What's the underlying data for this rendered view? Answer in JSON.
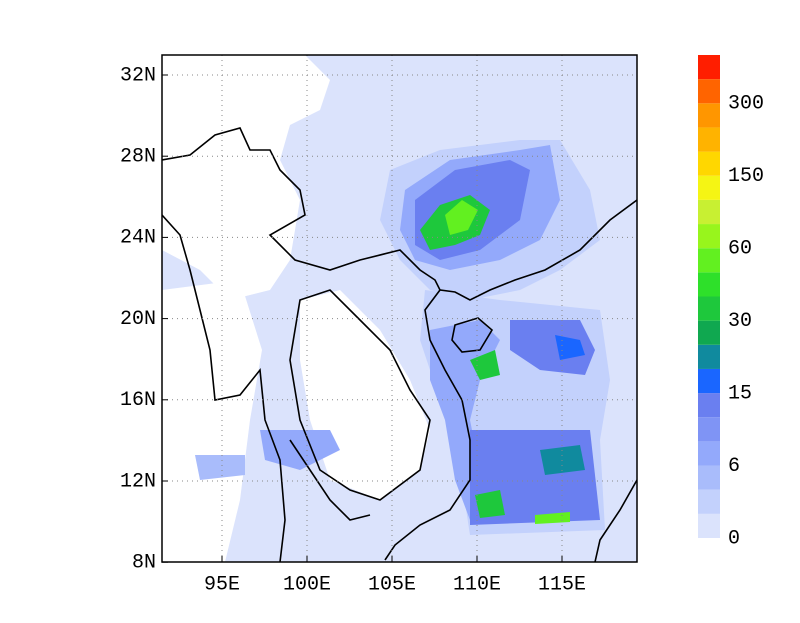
{
  "map": {
    "x_labels": [
      "95E",
      "100E",
      "105E",
      "110E",
      "115E"
    ],
    "y_labels": [
      "32N",
      "28N",
      "24N",
      "20N",
      "16N",
      "12N",
      "8N"
    ],
    "colorbar": {
      "colors": [
        "#dbe3fc",
        "#c3d1fc",
        "#a9bcfb",
        "#93a9fb",
        "#7f94f5",
        "#6a7ff0",
        "#1a66ff",
        "#108a9e",
        "#10a850",
        "#1ec83c",
        "#2ee02a",
        "#62f020",
        "#98f51c",
        "#c8f032",
        "#f5f514",
        "#ffd700",
        "#ffb300",
        "#ff9600",
        "#ff6400",
        "#ff1e00"
      ],
      "labels": [
        "0",
        "6",
        "15",
        "30",
        "60",
        "150",
        "300"
      ]
    }
  }
}
